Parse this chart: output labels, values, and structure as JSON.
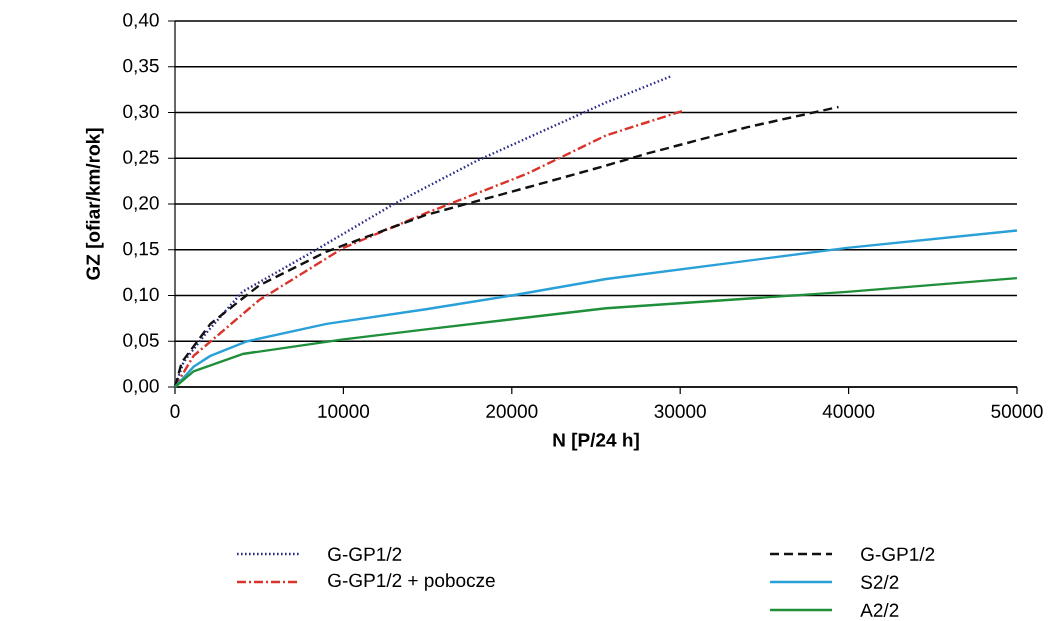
{
  "chart_data": {
    "type": "line",
    "xlabel": "N [P/24 h]",
    "ylabel": "GZ [ofiar/km/rok]",
    "xlim": [
      0,
      50000
    ],
    "xticks": [
      0,
      10000,
      20000,
      30000,
      40000,
      50000
    ],
    "ylim": [
      0,
      0.4
    ],
    "yticks": [
      {
        "value": 0,
        "label": "0,00"
      },
      {
        "value": 0.05,
        "label": "0,05"
      },
      {
        "value": 0.1,
        "label": "0,10"
      },
      {
        "value": 0.15,
        "label": "0,15"
      },
      {
        "value": 0.2,
        "label": "0,20"
      },
      {
        "value": 0.25,
        "label": "0,25"
      },
      {
        "value": 0.3,
        "label": "0,30"
      },
      {
        "value": 0.35,
        "label": "0,35"
      },
      {
        "value": 0.4,
        "label": "0,40"
      }
    ],
    "grid": "y",
    "legend": "bottom",
    "marker": "none",
    "series": [
      {
        "name": "G-GP1/2",
        "color": "#2b2b8a",
        "line_style": "dotted",
        "x": [
          0,
          500,
          1900,
          4000,
          8200,
          13000,
          17900,
          25600,
          29500
        ],
        "values": [
          0,
          0.027,
          0.06,
          0.104,
          0.148,
          0.2,
          0.247,
          0.311,
          0.34
        ]
      },
      {
        "name": "G-GP1/2 + pobocze",
        "color": "#d9342b",
        "line_style": "dashdot",
        "x": [
          0,
          1100,
          5000,
          10000,
          14900,
          20900,
          25600,
          30200
        ],
        "values": [
          0,
          0.034,
          0.095,
          0.152,
          0.19,
          0.233,
          0.275,
          0.302
        ]
      },
      {
        "name": "G-GP1/2",
        "color": "#111111",
        "line_style": "dashed",
        "x": [
          0,
          400,
          2100,
          5000,
          9000,
          14900,
          20900,
          25600,
          28000,
          34000,
          39400
        ],
        "values": [
          0,
          0.027,
          0.069,
          0.111,
          0.148,
          0.188,
          0.218,
          0.242,
          0.255,
          0.284,
          0.306
        ]
      },
      {
        "name": "S2/2",
        "color": "#2aa0d8",
        "line_style": "solid",
        "x": [
          0,
          1100,
          2100,
          4300,
          9000,
          14900,
          20000,
          25600,
          39900,
          50000
        ],
        "values": [
          0,
          0.022,
          0.034,
          0.05,
          0.069,
          0.085,
          0.1,
          0.118,
          0.152,
          0.171
        ]
      },
      {
        "name": "A2/2",
        "color": "#1f8f3a",
        "line_style": "solid",
        "x": [
          0,
          1100,
          4000,
          10000,
          14900,
          20000,
          25600,
          39900,
          50000
        ],
        "values": [
          0,
          0.017,
          0.036,
          0.052,
          0.063,
          0.074,
          0.086,
          0.104,
          0.119
        ]
      }
    ]
  }
}
